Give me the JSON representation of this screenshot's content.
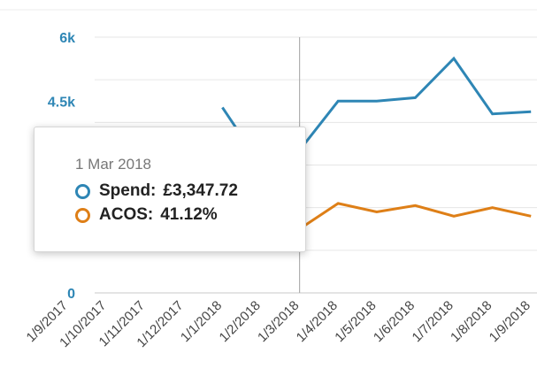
{
  "chart_data": {
    "type": "line",
    "x": [
      "1/9/2017",
      "1/10/2017",
      "1/11/2017",
      "1/12/2017",
      "1/1/2018",
      "1/2/2018",
      "1/3/2018",
      "1/4/2018",
      "1/5/2018",
      "1/6/2018",
      "1/7/2018",
      "1/8/2018",
      "1/9/2018"
    ],
    "y_ticks": [
      "0",
      "4.5k",
      "6k"
    ],
    "ylim": [
      0,
      6000
    ],
    "grid": true,
    "colors": {
      "spend": "#2e86b5",
      "acos": "#de7f17"
    },
    "series": [
      {
        "name": "Spend",
        "values": [
          null,
          null,
          null,
          null,
          4350,
          3000,
          3347.72,
          4500,
          4500,
          4580,
          5500,
          4200,
          4250
        ]
      },
      {
        "name": "ACOS",
        "values": [
          null,
          null,
          null,
          null,
          null,
          1400,
          1500,
          2100,
          1900,
          2050,
          1800,
          2000,
          1800
        ]
      }
    ],
    "highlight_index": 6
  },
  "tooltip": {
    "date": "1 Mar 2018",
    "rows": [
      {
        "label": "Spend:",
        "value": "£3,347.72",
        "color": "#2e86b5"
      },
      {
        "label": "ACOS:",
        "value": "41.12%",
        "color": "#de7f17"
      }
    ]
  }
}
